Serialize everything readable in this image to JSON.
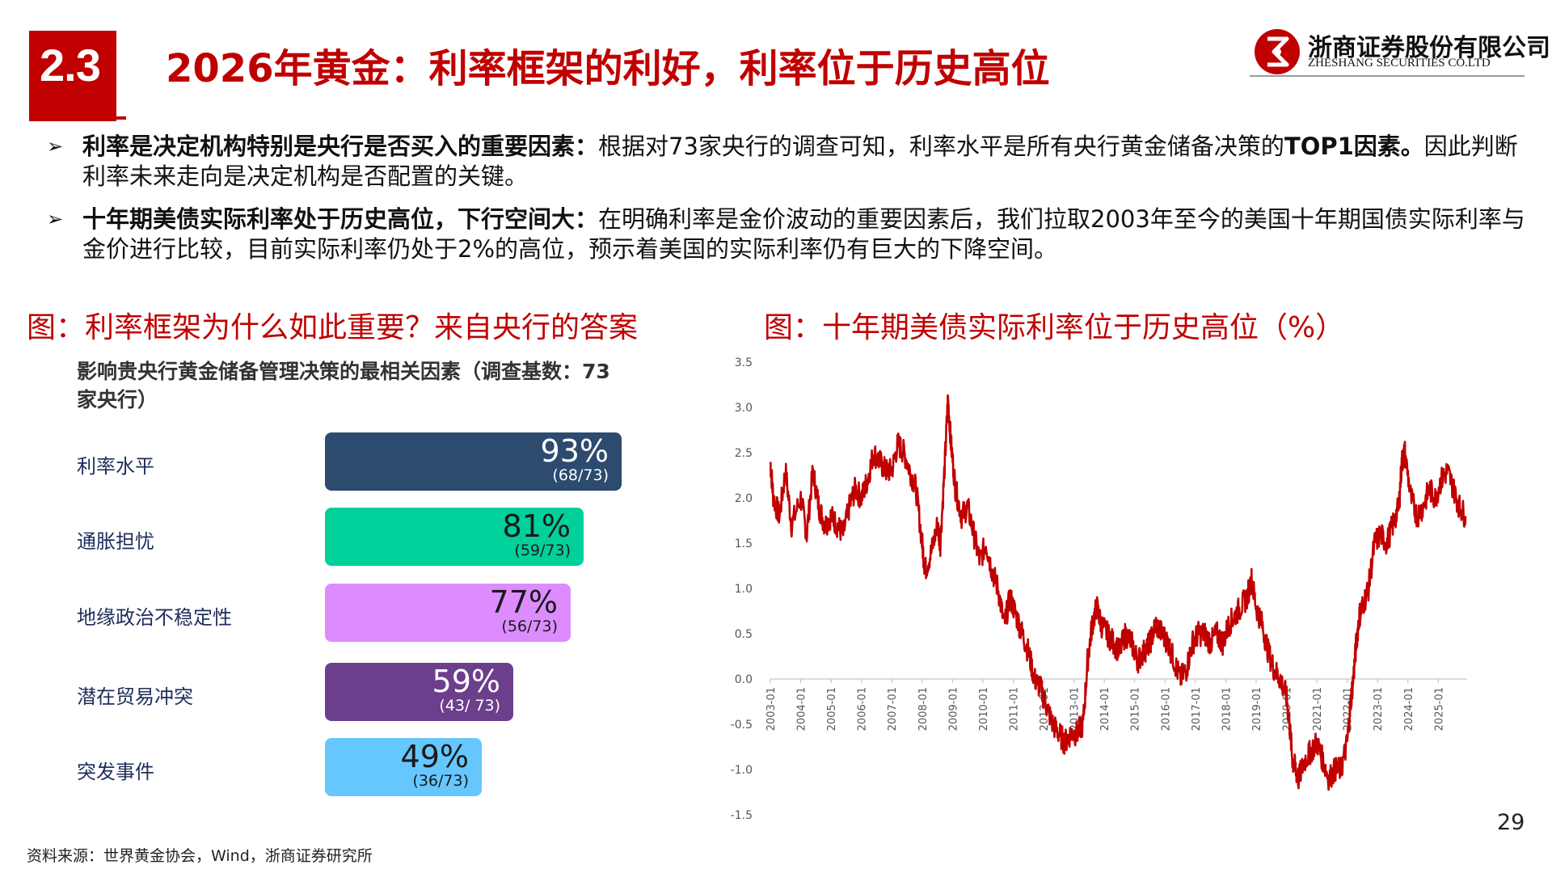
{
  "header": {
    "section_number": "2.3",
    "title": "2026年黄金：利率框架的利好，利率位于历史高位",
    "company_cn": "浙商证券股份有限公司",
    "company_en": "ZHESHANG SECURITIES CO.LTD",
    "brand_color": "#c00000"
  },
  "bullets": [
    {
      "bold": "利率是决定机构特别是央行是否买入的重要因素：",
      "text_a": "根据对73家央行的调查可知，利率水平是所有央行黄金储备决策的",
      "bold_b": "TOP1因素。",
      "text_b": "因此判断利率未来走向是决定机构是否配置的关键。"
    },
    {
      "bold": "十年期美债实际利率处于历史高位，下行空间大：",
      "text_a": "在明确利率是金价波动的重要因素后，我们拉取2003年至今的美国十年期国债实际利率与金价进行比较，目前实际利率仍处于2%的高位，预示着美国的实际利率仍有巨大的下降空间。"
    }
  ],
  "left_figure": {
    "title": "图：利率框架为什么如此重要？来自央行的答案",
    "heading": "影响贵央行黄金储备管理决策的最相关因素（调查基数：73家央行）"
  },
  "right_figure": {
    "title": "图：十年期美债实际利率位于历史高位（%）"
  },
  "chart_data": [
    {
      "type": "bar",
      "orientation": "horizontal",
      "title": "影响贵央行黄金储备管理决策的最相关因素（调查基数：73家央行）",
      "categories": [
        "利率水平",
        "通胀担忧",
        "地缘政治不稳定性",
        "潜在贸易冲突",
        "突发事件"
      ],
      "values": [
        93,
        81,
        77,
        59,
        49
      ],
      "value_labels": [
        "93%",
        "81%",
        "77%",
        "59%",
        "49%"
      ],
      "count_labels": [
        "(68/73)",
        "(59/73)",
        "(56/73)",
        "(43/ 73)",
        "(36/73)"
      ],
      "colors": [
        "#2d4a6f",
        "#00d09a",
        "#dd8cff",
        "#6c3f8c",
        "#66c7ff"
      ],
      "text_colors": [
        "#ffffff",
        "#1a1a1a",
        "#1a1a1a",
        "#ffffff",
        "#1a1a1a"
      ],
      "xlim": [
        0,
        100
      ]
    },
    {
      "type": "line",
      "title": "十年期美债实际利率位于历史高位（%）",
      "ylim": [
        -1.5,
        3.5
      ],
      "y_ticks": [
        "3.5",
        "3.0",
        "2.5",
        "2.0",
        "1.5",
        "1.0",
        "0.5",
        "0.0",
        "-0.5",
        "-1.0",
        "-1.5"
      ],
      "x_ticks": [
        "2003-01",
        "2004-01",
        "2005-01",
        "2006-01",
        "2007-01",
        "2008-01",
        "2009-01",
        "2010-01",
        "2011-01",
        "2012-01",
        "2013-01",
        "2014-01",
        "2015-01",
        "2016-01",
        "2017-01",
        "2018-01",
        "2019-01",
        "2020-01",
        "2021-01",
        "2022-01",
        "2023-01",
        "2024-01",
        "2025-01"
      ],
      "x_range": [
        2003.0,
        2025.95
      ],
      "line_color": "#c00000",
      "grid": false,
      "series": [
        {
          "x": [
            2003.0,
            2003.1,
            2003.3,
            2003.5,
            2003.7,
            2004.0,
            2004.2,
            2004.4,
            2004.6,
            2004.8,
            2005.0,
            2005.2,
            2005.4,
            2005.6,
            2005.8,
            2006.0,
            2006.2,
            2006.4,
            2006.6,
            2006.8,
            2007.0,
            2007.2,
            2007.4,
            2007.6,
            2007.8,
            2008.0,
            2008.1,
            2008.3,
            2008.5,
            2008.6,
            2008.75,
            2008.85,
            2008.95,
            2009.1,
            2009.3,
            2009.5,
            2009.7,
            2009.9,
            2010.1,
            2010.3,
            2010.5,
            2010.7,
            2010.9,
            2011.1,
            2011.3,
            2011.5,
            2011.7,
            2011.9,
            2012.1,
            2012.3,
            2012.5,
            2012.7,
            2012.9,
            2013.1,
            2013.3,
            2013.45,
            2013.6,
            2013.75,
            2013.9,
            2014.1,
            2014.3,
            2014.5,
            2014.7,
            2014.9,
            2015.1,
            2015.3,
            2015.5,
            2015.7,
            2015.9,
            2016.1,
            2016.3,
            2016.5,
            2016.7,
            2016.9,
            2017.1,
            2017.3,
            2017.5,
            2017.7,
            2017.9,
            2018.1,
            2018.3,
            2018.5,
            2018.7,
            2018.85,
            2019.0,
            2019.2,
            2019.4,
            2019.6,
            2019.8,
            2020.0,
            2020.1,
            2020.2,
            2020.3,
            2020.4,
            2020.6,
            2020.8,
            2021.0,
            2021.2,
            2021.4,
            2021.6,
            2021.8,
            2022.0,
            2022.1,
            2022.2,
            2022.3,
            2022.4,
            2022.5,
            2022.7,
            2022.9,
            2023.1,
            2023.3,
            2023.5,
            2023.7,
            2023.8,
            2023.9,
            2024.1,
            2024.3,
            2024.5,
            2024.7,
            2024.9,
            2025.1,
            2025.3,
            2025.5,
            2025.7,
            2025.9
          ],
          "y": [
            2.4,
            2.0,
            1.8,
            2.3,
            1.7,
            2.0,
            1.6,
            2.3,
            1.9,
            1.7,
            1.8,
            1.7,
            1.6,
            1.9,
            2.1,
            2.0,
            2.2,
            2.5,
            2.4,
            2.3,
            2.3,
            2.6,
            2.5,
            2.3,
            2.1,
            1.5,
            1.2,
            1.4,
            1.7,
            1.5,
            2.4,
            3.1,
            2.6,
            2.1,
            1.8,
            1.9,
            1.6,
            1.3,
            1.5,
            1.2,
            1.0,
            0.6,
            0.9,
            0.7,
            0.5,
            0.3,
            0.0,
            -0.1,
            -0.3,
            -0.5,
            -0.6,
            -0.7,
            -0.6,
            -0.6,
            -0.5,
            0.2,
            0.6,
            0.8,
            0.6,
            0.5,
            0.4,
            0.3,
            0.5,
            0.4,
            0.2,
            0.3,
            0.4,
            0.6,
            0.5,
            0.4,
            0.2,
            0.0,
            0.1,
            0.4,
            0.5,
            0.5,
            0.4,
            0.5,
            0.4,
            0.6,
            0.7,
            0.8,
            0.9,
            1.1,
            0.8,
            0.6,
            0.3,
            0.1,
            0.0,
            -0.2,
            -0.5,
            -0.9,
            -1.0,
            -1.1,
            -0.9,
            -0.8,
            -0.7,
            -0.9,
            -1.1,
            -1.0,
            -1.0,
            -0.7,
            -0.3,
            0.0,
            0.4,
            0.7,
            0.8,
            1.0,
            1.5,
            1.6,
            1.5,
            1.7,
            1.9,
            2.4,
            2.5,
            2.0,
            1.8,
            1.9,
            2.1,
            2.0,
            2.2,
            2.3,
            2.1,
            1.9,
            1.8
          ]
        }
      ]
    }
  ],
  "source": "资料来源：世界黄金协会，Wind，浙商证券研究所",
  "page_number": "29"
}
